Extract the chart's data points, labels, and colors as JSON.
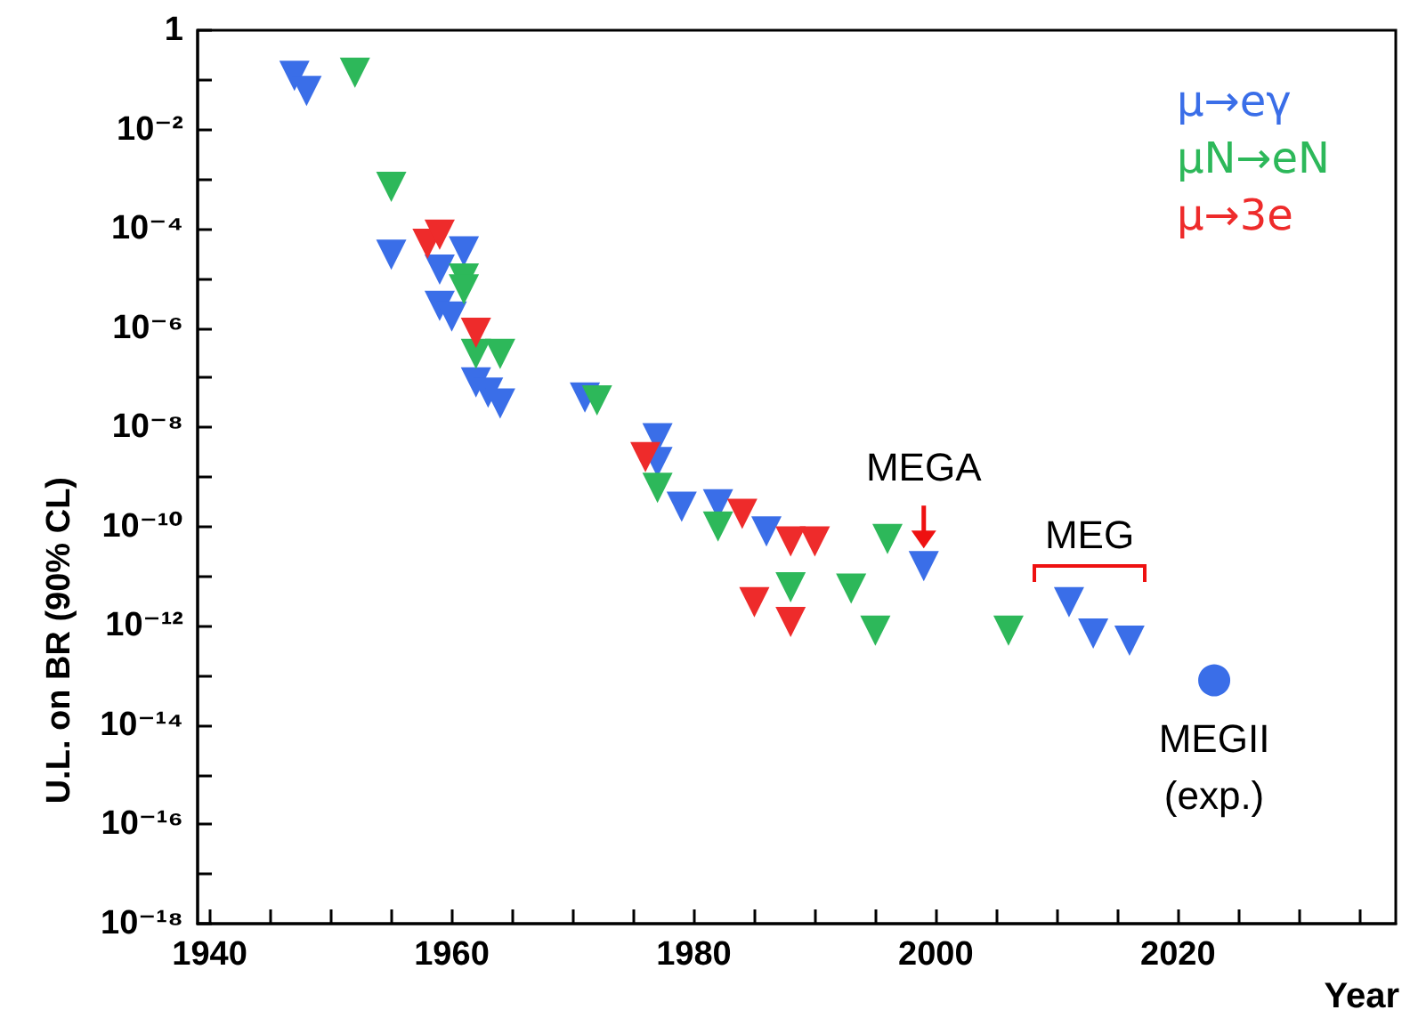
{
  "chart_data": {
    "type": "scatter",
    "xlabel": "Year",
    "ylabel": "U.L. on BR (90% CL)",
    "log": "y",
    "marker": "triangle",
    "grid": false,
    "legend": "top right",
    "xlim": [
      1939,
      2038
    ],
    "xticks": [
      {
        "value": 1940,
        "label": "1940"
      },
      {
        "value": 1945,
        "label": null
      },
      {
        "value": 1950,
        "label": null
      },
      {
        "value": 1955,
        "label": null
      },
      {
        "value": 1960,
        "label": "1960"
      },
      {
        "value": 1965,
        "label": null
      },
      {
        "value": 1970,
        "label": null
      },
      {
        "value": 1975,
        "label": null
      },
      {
        "value": 1980,
        "label": "1980"
      },
      {
        "value": 1985,
        "label": null
      },
      {
        "value": 1990,
        "label": null
      },
      {
        "value": 1995,
        "label": null
      },
      {
        "value": 2000,
        "label": "2000"
      },
      {
        "value": 2005,
        "label": null
      },
      {
        "value": 2010,
        "label": null
      },
      {
        "value": 2015,
        "label": null
      },
      {
        "value": 2020,
        "label": "2020"
      },
      {
        "value": 2025,
        "label": null
      },
      {
        "value": 2030,
        "label": null
      },
      {
        "value": 2035,
        "label": null
      }
    ],
    "ylim": [
      1e-18,
      1
    ],
    "yticks": [
      {
        "value": 1,
        "label": "1"
      },
      {
        "value": 0.1,
        "label": null
      },
      {
        "value": 0.01,
        "label": "10⁻²"
      },
      {
        "value": 0.001,
        "label": null
      },
      {
        "value": 0.0001,
        "label": "10⁻⁴"
      },
      {
        "value": 1e-05,
        "label": null
      },
      {
        "value": 1e-06,
        "label": "10⁻⁶"
      },
      {
        "value": 1e-07,
        "label": null
      },
      {
        "value": 1e-08,
        "label": "10⁻⁸"
      },
      {
        "value": 1e-09,
        "label": null
      },
      {
        "value": 1e-10,
        "label": "10⁻¹⁰"
      },
      {
        "value": 1e-11,
        "label": null
      },
      {
        "value": 1e-12,
        "label": "10⁻¹²"
      },
      {
        "value": 1e-13,
        "label": null
      },
      {
        "value": 1e-14,
        "label": "10⁻¹⁴"
      },
      {
        "value": 1e-15,
        "label": null
      },
      {
        "value": 1e-16,
        "label": "10⁻¹⁶"
      },
      {
        "value": 1e-17,
        "label": null
      },
      {
        "value": 1e-18,
        "label": "10⁻¹⁸"
      }
    ],
    "series": [
      {
        "name": "μ→eγ",
        "color": "#3a6ee8",
        "x": [
          1947,
          1948,
          1955,
          1959,
          1959,
          1960,
          1961,
          1962,
          1963,
          1964,
          1971,
          1977,
          1977,
          1979,
          1982,
          1986,
          1999,
          2011,
          2013,
          2016
        ],
        "values": [
          0.12,
          0.06,
          3e-05,
          1.5e-05,
          2.8e-06,
          1.7e-06,
          3.5e-05,
          8e-08,
          5e-08,
          3e-08,
          4e-08,
          6e-09,
          2e-09,
          2.5e-10,
          2.8e-10,
          8e-11,
          1.6e-11,
          3e-12,
          7e-13,
          5e-13
        ]
      },
      {
        "name": "μN→eN",
        "color": "#2db85a",
        "x": [
          1952,
          1955,
          1961,
          1961,
          1962,
          1964,
          1972,
          1977,
          1982,
          1988,
          1993,
          1995,
          1996,
          2006
        ],
        "values": [
          0.14,
          0.0007,
          1e-05,
          6e-06,
          3e-07,
          3e-07,
          3.5e-08,
          6e-10,
          1e-10,
          6e-12,
          5.6e-12,
          8e-13,
          5.6e-11,
          8e-13
        ]
      },
      {
        "name": "μ→3e",
        "color": "#ee2b2b",
        "x": [
          1958,
          1959,
          1962,
          1976,
          1984,
          1985,
          1988,
          1988,
          1990
        ],
        "values": [
          5e-05,
          7.6e-05,
          8e-07,
          2.5e-09,
          1.8e-10,
          3e-12,
          5e-11,
          1.2e-12,
          5e-11
        ]
      },
      {
        "type": "scatter",
        "marker": "circle",
        "color": "#3a6ee8",
        "x": [
          2023
        ],
        "values": [
          8e-14
        ]
      }
    ],
    "annotations": [
      {
        "text": "MEGA",
        "x": 1999,
        "y": 1.6e-11
      },
      "MEG",
      {
        "text": "MEGII (exp.)",
        "x": 2023,
        "y": 8e-14
      }
    ]
  }
}
